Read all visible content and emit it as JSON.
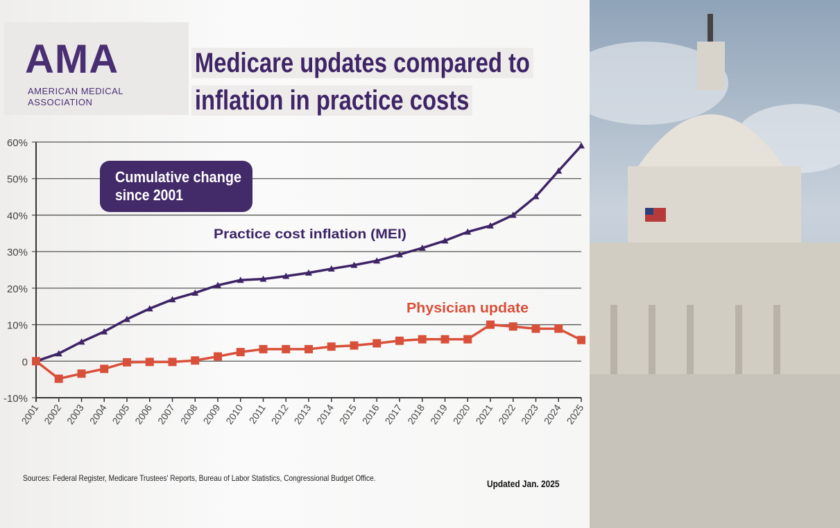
{
  "logo": {
    "text": "AMA",
    "subtitle_line1": "AMERICAN MEDICAL",
    "subtitle_line2": "ASSOCIATION"
  },
  "title": {
    "line1": "Medicare updates compared to",
    "line2": "inflation in practice costs"
  },
  "chart_data": {
    "type": "line",
    "annotation": "Cumulative change since 2001",
    "annotation_line1": "Cumulative change",
    "annotation_line2": "since 2001",
    "x": [
      "2001",
      "2002",
      "2003",
      "2004",
      "2005",
      "2006",
      "2007",
      "2008",
      "2009",
      "2010",
      "2011",
      "2012",
      "2013",
      "2014",
      "2015",
      "2016",
      "2017",
      "2018",
      "2019",
      "2020",
      "2021",
      "2022",
      "2023",
      "2024",
      "2025"
    ],
    "ylim": [
      -10,
      60
    ],
    "yticks": [
      -10,
      0,
      10,
      20,
      30,
      40,
      50,
      60
    ],
    "ytick_labels": [
      "-10%",
      "0",
      "10%",
      "20%",
      "30%",
      "40%",
      "50%",
      "60%"
    ],
    "grid": true,
    "series": [
      {
        "name": "Practice cost inflation (MEI)",
        "color": "#3d2466",
        "marker": "triangle",
        "values": [
          0,
          2.1,
          5.3,
          8.1,
          11.5,
          14.4,
          16.9,
          18.7,
          20.8,
          22.2,
          22.5,
          23.3,
          24.2,
          25.3,
          26.3,
          27.5,
          29.2,
          31.0,
          33.0,
          35.4,
          37.1,
          40.0,
          45.1,
          52.1,
          59.0
        ]
      },
      {
        "name": "Physician update",
        "color": "#d9503a",
        "marker": "square",
        "values": [
          0,
          -4.8,
          -3.4,
          -2.1,
          -0.3,
          -0.2,
          -0.2,
          0.2,
          1.3,
          2.5,
          3.3,
          3.3,
          3.3,
          4.0,
          4.3,
          4.9,
          5.6,
          6.0,
          6.0,
          6.0,
          10.0,
          9.5,
          8.9,
          8.9,
          5.8
        ]
      }
    ]
  },
  "footer": {
    "sources": "Sources: Federal Register, Medicare Trustees' Reports, Bureau of Labor Statistics, Congressional Budget Office.",
    "updated": "Updated Jan. 2025"
  }
}
